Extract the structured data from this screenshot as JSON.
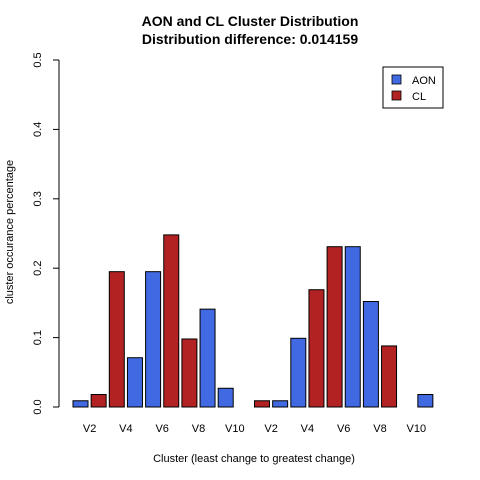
{
  "chart_data": {
    "type": "bar",
    "title": "AON and CL Cluster Distribution",
    "subtitle": "Distribution difference: 0.014159",
    "xlabel": "Cluster (least change to greatest change)",
    "ylabel": "cluster occurance percentage",
    "ylim": [
      0,
      0.5
    ],
    "yticks": [
      "0.0",
      "0.1",
      "0.2",
      "0.3",
      "0.4",
      "0.5"
    ],
    "xticks": [
      "V2",
      "V4",
      "V6",
      "V8",
      "V10",
      "V2",
      "V4",
      "V6",
      "V8",
      "V10"
    ],
    "legend_position": "top-right",
    "colors": {
      "AON": "#4169e1",
      "CL": "#b22222"
    },
    "series": [
      {
        "name": "AON",
        "values": [
          0.009,
          0.071,
          0.195,
          0.141,
          0.027,
          0.009,
          0.099,
          0.231,
          0.152,
          0.018
        ]
      },
      {
        "name": "CL",
        "values": [
          0.018,
          0.195,
          0.248,
          0.098,
          0.0,
          0.009,
          0.169,
          0.231,
          0.088,
          0.0
        ]
      }
    ]
  }
}
